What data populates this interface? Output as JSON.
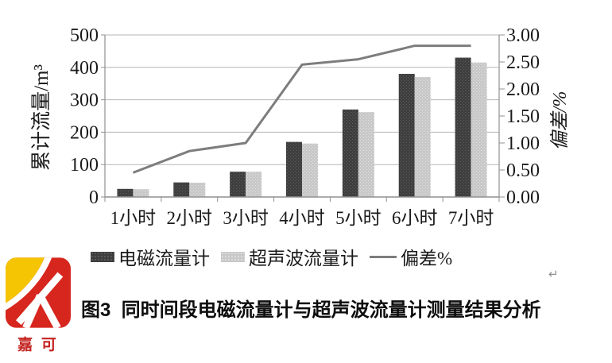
{
  "chart_data": {
    "type": "bar",
    "subtype": "grouped-bar-with-secondary-axis-line",
    "categories": [
      "1小时",
      "2小时",
      "3小时",
      "4小时",
      "5小时",
      "6小时",
      "7小时"
    ],
    "series": [
      {
        "name": "电磁流量计",
        "kind": "bar",
        "axis": "left",
        "color": "#3e3e3e",
        "values": [
          25,
          45,
          78,
          170,
          270,
          380,
          430
        ]
      },
      {
        "name": "超声波流量计",
        "kind": "bar",
        "axis": "left",
        "color": "#c8c8c8",
        "values": [
          24,
          44,
          78,
          165,
          262,
          370,
          415
        ]
      },
      {
        "name": "偏差%",
        "kind": "line",
        "axis": "right",
        "color": "#7d7d7d",
        "values": [
          0.45,
          0.85,
          1.0,
          2.45,
          2.55,
          2.8,
          2.8
        ]
      }
    ],
    "left_axis": {
      "label": "累计流量/m³",
      "min": 0,
      "max": 500,
      "step": 100,
      "ticks": [
        "0",
        "100",
        "200",
        "300",
        "400",
        "500"
      ]
    },
    "right_axis": {
      "label": "偏差/%",
      "min": 0,
      "max": 3,
      "step": 0.5,
      "ticks": [
        "0.00",
        "0.50",
        "1.00",
        "1.50",
        "2.00",
        "2.50",
        "3.00"
      ]
    },
    "grid": "horizontal",
    "legend_position": "bottom",
    "title": ""
  },
  "legend_note": "legend labels are taken from chart_data.series names",
  "caption": "图3  同时间段电磁流量计与超声波流量计测量结果分析",
  "logo": {
    "text": "嘉 可",
    "yellow": "#f5c402",
    "red": "#d7261d",
    "text_color": "#c42421"
  },
  "paragraph_mark": "↵",
  "colors": {
    "gridline": "#b5b5b5",
    "axis": "#909090",
    "text": "#1a1a1a"
  }
}
